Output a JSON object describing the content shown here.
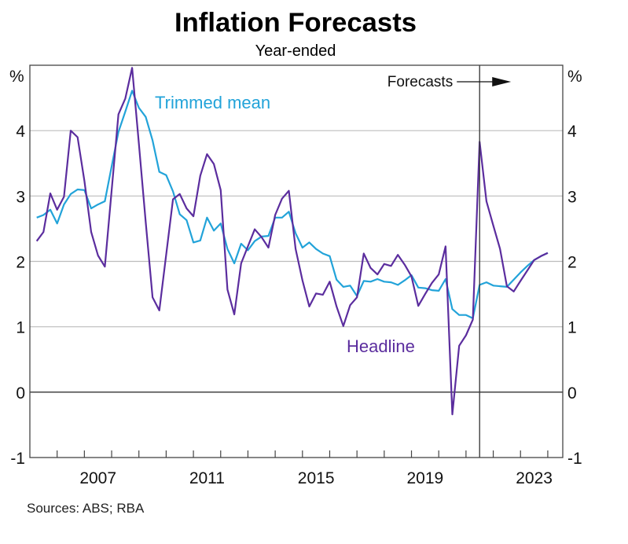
{
  "chart_data": {
    "type": "line",
    "title": "Inflation Forecasts",
    "subtitle": "Year-ended",
    "xlabel": "",
    "ylabel": "%",
    "ylabel_right": "%",
    "ylim": [
      -1,
      5
    ],
    "yticks": [
      -1,
      0,
      1,
      2,
      3,
      4
    ],
    "xlim": [
      2005,
      2024.55
    ],
    "xtick_labels": [
      "2007",
      "2011",
      "2015",
      "2019",
      "2023"
    ],
    "grid": true,
    "frequency": "quarterly",
    "x_start": "Mar-2005",
    "x": [
      "Mar-2005",
      "Jun-2005",
      "Sep-2005",
      "Dec-2005",
      "Mar-2006",
      "Jun-2006",
      "Sep-2006",
      "Dec-2006",
      "Mar-2007",
      "Jun-2007",
      "Sep-2007",
      "Dec-2007",
      "Mar-2008",
      "Jun-2008",
      "Sep-2008",
      "Dec-2008",
      "Mar-2009",
      "Jun-2009",
      "Sep-2009",
      "Dec-2009",
      "Mar-2010",
      "Jun-2010",
      "Sep-2010",
      "Dec-2010",
      "Mar-2011",
      "Jun-2011",
      "Sep-2011",
      "Dec-2011",
      "Mar-2012",
      "Jun-2012",
      "Sep-2012",
      "Dec-2012",
      "Mar-2013",
      "Jun-2013",
      "Sep-2013",
      "Dec-2013",
      "Mar-2014",
      "Jun-2014",
      "Sep-2014",
      "Dec-2014",
      "Mar-2015",
      "Jun-2015",
      "Sep-2015",
      "Dec-2015",
      "Mar-2016",
      "Jun-2016",
      "Sep-2016",
      "Dec-2016",
      "Mar-2017",
      "Jun-2017",
      "Sep-2017",
      "Dec-2017",
      "Mar-2018",
      "Jun-2018",
      "Sep-2018",
      "Dec-2018",
      "Mar-2019",
      "Jun-2019",
      "Sep-2019",
      "Dec-2019",
      "Mar-2020",
      "Jun-2020",
      "Sep-2020",
      "Dec-2020",
      "Mar-2021",
      "Jun-2021",
      "Sep-2021",
      "Dec-2021",
      "Mar-2022",
      "Jun-2022",
      "Sep-2022",
      "Dec-2022",
      "Mar-2023",
      "Jun-2023",
      "Sep-2023",
      "Dec-2023"
    ],
    "series": [
      {
        "name": "Headline",
        "color": "#5b2d9e",
        "values": [
          2.31,
          2.45,
          3.04,
          2.79,
          2.99,
          4.0,
          3.9,
          3.23,
          2.45,
          2.09,
          1.92,
          3.08,
          4.25,
          4.49,
          4.96,
          3.8,
          2.6,
          1.45,
          1.25,
          2.1,
          2.95,
          3.03,
          2.81,
          2.69,
          3.31,
          3.64,
          3.49,
          3.09,
          1.57,
          1.19,
          1.97,
          2.23,
          2.49,
          2.37,
          2.21,
          2.71,
          2.96,
          3.08,
          2.19,
          1.71,
          1.31,
          1.51,
          1.49,
          1.69,
          1.31,
          1.01,
          1.33,
          1.45,
          2.12,
          1.9,
          1.8,
          1.96,
          1.93,
          2.1,
          1.95,
          1.77,
          1.32,
          1.5,
          1.67,
          1.8,
          2.23,
          -0.34,
          0.71,
          0.87,
          1.11,
          3.83,
          2.92,
          2.55,
          2.19,
          1.62,
          1.54,
          1.7,
          1.86,
          2.02,
          2.08,
          2.13
        ]
      },
      {
        "name": "Trimmed mean",
        "color": "#22a3d9",
        "values": [
          2.67,
          2.71,
          2.79,
          2.58,
          2.87,
          3.03,
          3.1,
          3.09,
          2.81,
          2.87,
          2.92,
          3.45,
          3.98,
          4.29,
          4.61,
          4.35,
          4.21,
          3.85,
          3.37,
          3.32,
          3.07,
          2.72,
          2.63,
          2.29,
          2.32,
          2.67,
          2.47,
          2.58,
          2.19,
          1.97,
          2.27,
          2.17,
          2.31,
          2.38,
          2.39,
          2.67,
          2.67,
          2.76,
          2.43,
          2.21,
          2.29,
          2.19,
          2.12,
          2.08,
          1.72,
          1.61,
          1.63,
          1.47,
          1.7,
          1.69,
          1.73,
          1.69,
          1.68,
          1.64,
          1.71,
          1.79,
          1.6,
          1.59,
          1.56,
          1.55,
          1.73,
          1.27,
          1.18,
          1.18,
          1.13,
          1.64,
          1.68,
          1.63,
          1.62,
          1.61,
          1.72,
          1.83,
          1.93,
          2.02,
          2.08,
          2.13
        ]
      }
    ],
    "annotations": [
      {
        "text": "Forecasts",
        "type": "vertical-line-with-arrow",
        "at": "Jun-2021",
        "arrow_direction": "right"
      }
    ],
    "legend": "inline-labels",
    "source": "Sources: ABS; RBA"
  }
}
